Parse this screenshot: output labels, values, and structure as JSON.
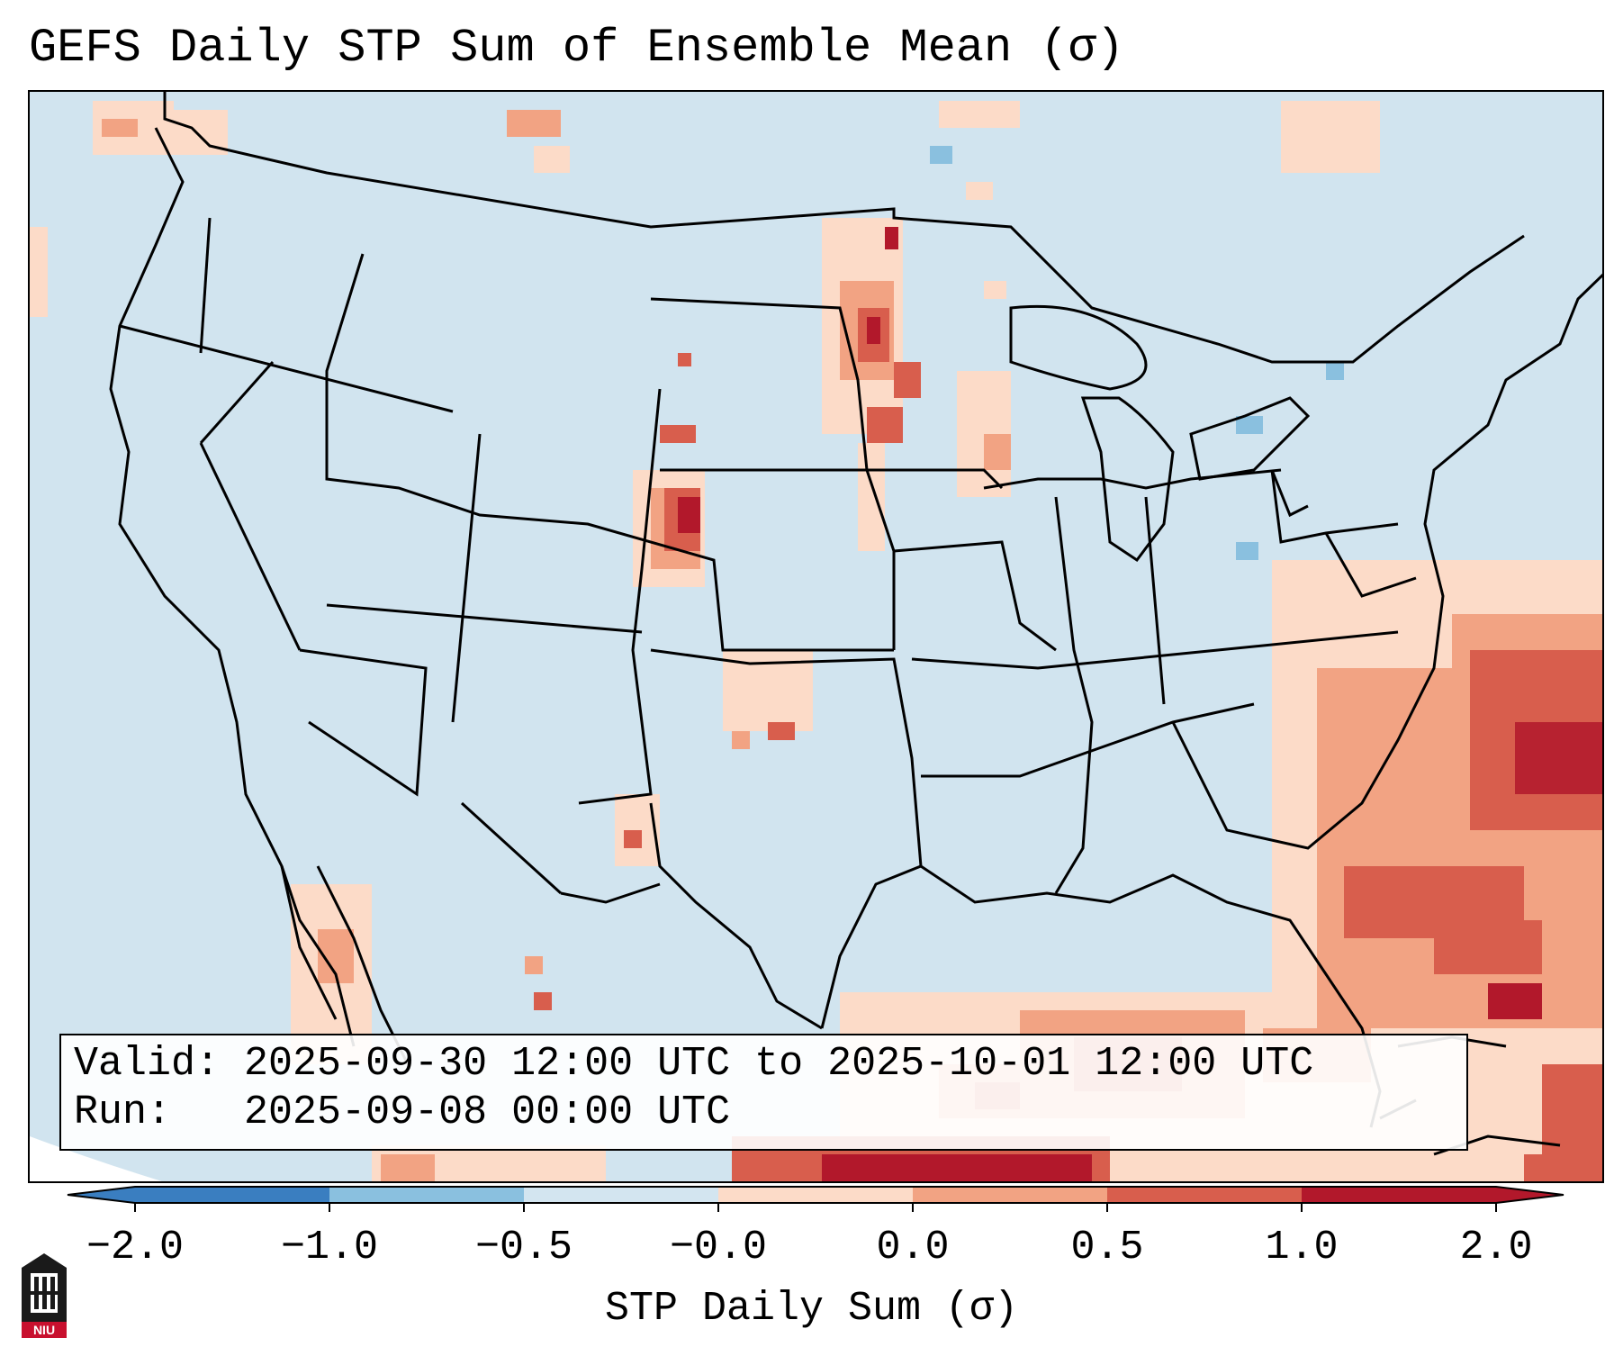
{
  "title": "GEFS Daily STP Sum of Ensemble Mean (σ)",
  "info": {
    "valid_label": "Valid:",
    "valid_value": "2025-09-30 12:00 UTC to 2025-10-01 12:00 UTC",
    "run_label": "Run:",
    "run_value": "2025-09-08 00:00 UTC"
  },
  "colorbar": {
    "title": "STP Daily Sum (σ)",
    "ticks": [
      "−2.0",
      "−1.0",
      "−0.5",
      "−0.0",
      "0.0",
      "0.5",
      "1.0",
      "2.0"
    ],
    "colors": [
      "#3a7ec0",
      "#8ac0df",
      "#d3e5f0",
      "#f6f7f7",
      "#fcdbc8",
      "#f2a383",
      "#d85e4d",
      "#b2182b"
    ],
    "under_color": "#3a7ec0",
    "over_color": "#b2182b"
  },
  "legend_colors": {
    "ocean_land": "#d1e4ef",
    "light_red": "#fcdbc8",
    "mid_red": "#f2a383",
    "strong_red": "#d85e4d",
    "dark_red": "#b2182b",
    "light_blue": "#8ac0df"
  },
  "logo": {
    "text": "NIU",
    "icon": "niu-university-logo-icon"
  }
}
